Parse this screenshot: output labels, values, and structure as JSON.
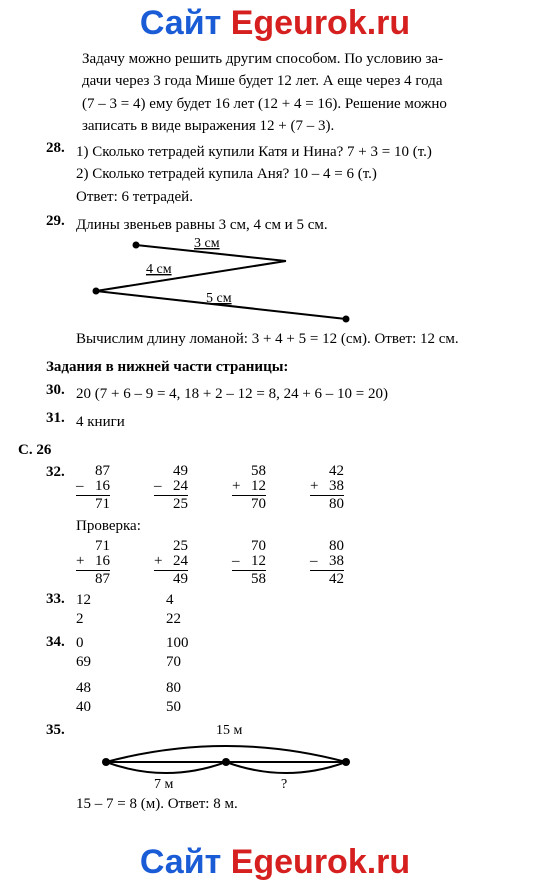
{
  "watermark": {
    "part1": "Сайт ",
    "part2": "Egeurok.ru"
  },
  "intro": {
    "l1": "Задачу можно решить другим способом. По условию за-",
    "l2": "дачи через 3 года Мише будет 12 лет. А еще через 4 года",
    "l3": "(7 – 3 = 4) ему будет 16 лет (12 + 4 = 16). Решение можно",
    "l4": "записать в виде выражения 12 + (7 – 3)."
  },
  "p28": {
    "n": "28.",
    "l1": "1) Сколько тетрадей купили Катя и Нина? 7 + 3 = 10 (т.)",
    "l2": "2) Сколько тетрадей купила Аня? 10 – 4 = 6 (т.)",
    "l3": "Ответ: 6 тетрадей."
  },
  "p29": {
    "n": "29.",
    "l1": "Длины звеньев равны 3 см, 4 см и 5 см.",
    "lbl3": "3 см",
    "lbl4": "4 см",
    "lbl5": "5 см",
    "l2": "Вычислим длину ломаной: 3 + 4 + 5 = 12 (см). Ответ: 12 см."
  },
  "section_hdr": "Задания в нижней части страницы:",
  "p30": {
    "n": "30.",
    "t": "20 (7 + 6 – 9 = 4, 18 + 2 – 12 = 8, 24 + 6 – 10 = 20)"
  },
  "p31": {
    "n": "31.",
    "t": "4 книги"
  },
  "page_hdr": "С. 26",
  "p32": {
    "n": "32.",
    "cols": [
      {
        "s": "–",
        "a": "87",
        "b": "16",
        "r": "71"
      },
      {
        "s": "–",
        "a": "49",
        "b": "24",
        "r": "25"
      },
      {
        "s": "+",
        "a": "58",
        "b": "12",
        "r": "70"
      },
      {
        "s": "+",
        "a": "42",
        "b": "38",
        "r": "80"
      }
    ],
    "check": "Проверка:",
    "ccols": [
      {
        "s": "+",
        "a": "71",
        "b": "16",
        "r": "87"
      },
      {
        "s": "+",
        "a": "25",
        "b": "24",
        "r": "49"
      },
      {
        "s": "–",
        "a": "70",
        "b": "12",
        "r": "58"
      },
      {
        "s": "–",
        "a": "80",
        "b": "38",
        "r": "42"
      }
    ]
  },
  "p33": {
    "n": "33.",
    "a1": "12",
    "b1": "4",
    "a2": "2",
    "b2": "22"
  },
  "p34": {
    "n": "34.",
    "a1": "0",
    "b1": "100",
    "a2": "69",
    "b2": "70",
    "a3": "48",
    "b3": "80",
    "a4": "40",
    "b4": "50"
  },
  "p35": {
    "n": "35.",
    "lblTop": "15 м",
    "lblL": "7 м",
    "lblR": "?",
    "ans": "15 – 7 = 8 (м). Ответ: 8 м."
  },
  "colors": {
    "line": "#000000"
  }
}
